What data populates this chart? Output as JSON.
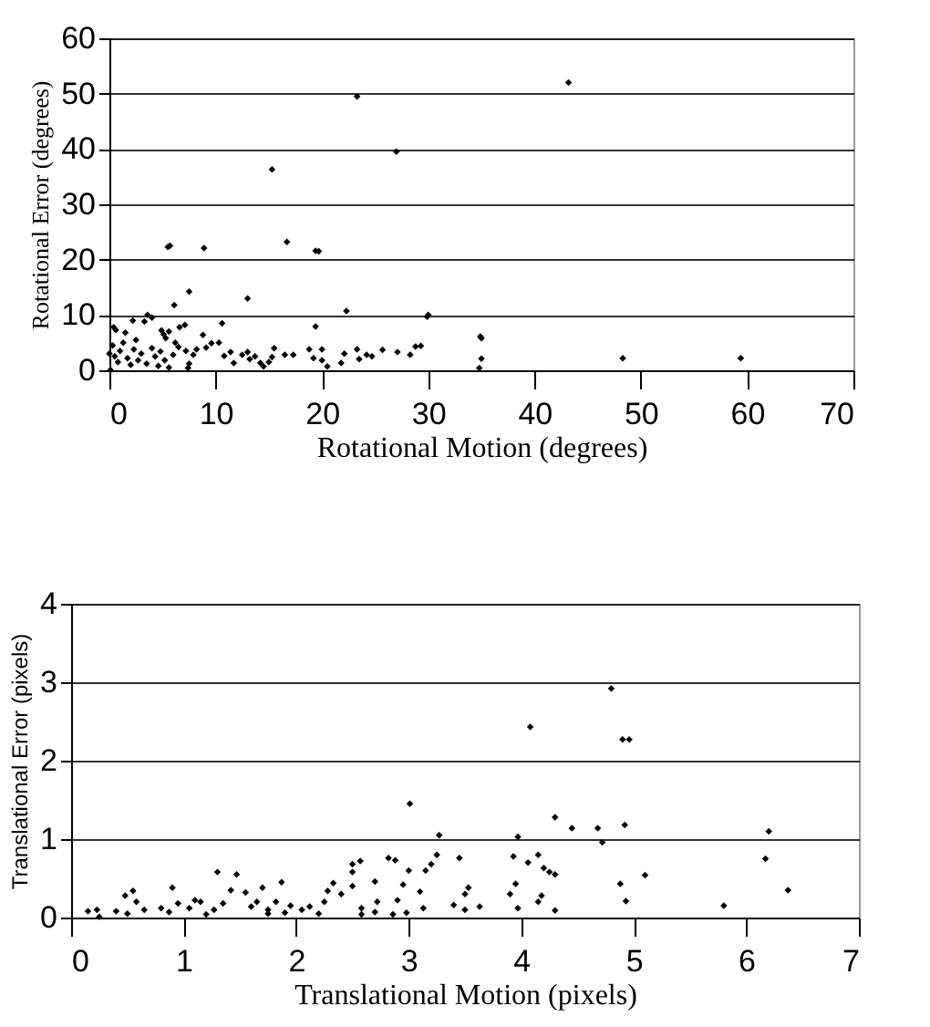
{
  "chart_data": [
    {
      "type": "scatter",
      "xlabel": "Rotational Motion (degrees)",
      "ylabel": "Rotational Error (degrees)",
      "color": "#000000",
      "marker": "diamond",
      "grid": "y",
      "xlim": [
        0,
        70
      ],
      "xticks": [
        0,
        10,
        20,
        30,
        40,
        50,
        60,
        70
      ],
      "ylim": [
        0,
        60
      ],
      "yticks": [
        0,
        10,
        20,
        30,
        40,
        50,
        60
      ],
      "x": [
        43.2,
        23.3,
        27,
        15.3,
        16.7,
        5.7,
        5.5,
        8.9,
        19.4,
        19.7,
        7.5,
        13,
        6.1,
        22.3,
        30,
        29.9,
        19.4,
        34.9,
        35,
        35,
        34.8,
        48.3,
        59.4,
        10.6,
        8.8,
        3.6,
        4,
        3.3,
        2.2,
        0.4,
        0.6,
        1.5,
        2.5,
        4.9,
        5.1,
        5.3,
        5.6,
        6.6,
        7.1,
        6.2,
        6.5,
        7.2,
        7.9,
        7.5,
        7.4,
        8.2,
        9.1,
        9.6,
        10.3,
        10.8,
        11.4,
        11.7,
        12.5,
        13,
        13.2,
        13.7,
        14.2,
        14.5,
        15,
        15.5,
        15.3,
        16.5,
        17.3,
        18.8,
        19.2,
        20,
        20,
        20.5,
        21.8,
        22.1,
        23.3,
        23.5,
        24.2,
        24.7,
        25.7,
        27.1,
        28.3,
        28.8,
        29.3,
        0,
        0.3,
        0.5,
        0.8,
        1,
        1.3,
        1.7,
        2,
        2.3,
        2.7,
        3,
        3.5,
        4,
        4.3,
        4.6,
        4.8,
        5.2,
        5.6,
        0.1,
        6
      ],
      "values": [
        52,
        49.5,
        39.5,
        36.3,
        23.2,
        22.5,
        22.3,
        22.1,
        21.6,
        21.5,
        14.2,
        13,
        11.8,
        10.7,
        10,
        9.7,
        7.9,
        6.1,
        5.8,
        2.1,
        0.4,
        2.2,
        2.2,
        8.5,
        6.4,
        10,
        9.5,
        8.8,
        9,
        7.8,
        7.3,
        6.8,
        5.5,
        7.2,
        6.5,
        5.8,
        7,
        7.8,
        8.2,
        5,
        4.2,
        3.5,
        2.8,
        1.2,
        0.4,
        3.8,
        4.1,
        4.9,
        5,
        2.6,
        3.3,
        1.3,
        2.8,
        3.3,
        2,
        2.5,
        1.3,
        0.7,
        1.5,
        4,
        2.4,
        2.8,
        2.8,
        3.8,
        2.2,
        3.8,
        1.8,
        0.7,
        1.3,
        3,
        3.8,
        2,
        2.8,
        2.5,
        3.7,
        3.3,
        2.8,
        4.3,
        4.4,
        3,
        4.5,
        2.5,
        1.5,
        3.5,
        5,
        2.2,
        1,
        3.8,
        1.8,
        3,
        1.2,
        4,
        2.5,
        0.8,
        3.4,
        1.8,
        0.5,
        0.1,
        2.8
      ]
    },
    {
      "type": "scatter",
      "xlabel": "Translational Motion (pixels)",
      "ylabel": "Translational Error (pixels)",
      "color": "#000000",
      "marker": "diamond",
      "grid": "y",
      "xlim": [
        0,
        7
      ],
      "xticks": [
        0,
        1,
        2,
        3,
        4,
        5,
        6,
        7
      ],
      "ylim": [
        0,
        4
      ],
      "yticks": [
        0,
        1,
        2,
        3,
        4
      ],
      "x": [
        4.8,
        4.08,
        4.9,
        4.96,
        3.01,
        4.3,
        4.45,
        4.68,
        4.92,
        6.2,
        3.97,
        3.27,
        4.72,
        6.17,
        5.1,
        6.37,
        4.88,
        4.93,
        5.8,
        4.3,
        4.15,
        4.18,
        3.97,
        3.9,
        3.95,
        3.93,
        4.06,
        4.15,
        4.2,
        4.25,
        4.3,
        3.45,
        3.53,
        3.5,
        3.4,
        3.5,
        3.63,
        3.25,
        3.2,
        3.15,
        3.1,
        3.13,
        2.98,
        3.0,
        2.88,
        2.82,
        2.95,
        2.9,
        2.86,
        2.7,
        2.72,
        2.7,
        2.58,
        2.58,
        2.57,
        2.5,
        2.5,
        2.5,
        2.4,
        2.33,
        2.28,
        2.2,
        2.12,
        2.05,
        1.95,
        1.9,
        1.87,
        1.82,
        1.75,
        1.7,
        1.65,
        1.6,
        1.55,
        1.47,
        1.42,
        1.3,
        1.35,
        1.27,
        1.2,
        1.15,
        1.1,
        1.05,
        0.95,
        0.9,
        0.87,
        0.8,
        0.65,
        0.58,
        0.55,
        0.48,
        0.5,
        0.4,
        0.25,
        0.23,
        0.15,
        1.75,
        2.25
      ],
      "values": [
        2.92,
        2.43,
        2.27,
        2.27,
        1.45,
        1.28,
        1.14,
        1.14,
        1.18,
        1.1,
        1.03,
        1.05,
        0.96,
        0.75,
        0.54,
        0.35,
        0.43,
        0.21,
        0.15,
        0.09,
        0.2,
        0.28,
        0.12,
        0.3,
        0.43,
        0.78,
        0.7,
        0.8,
        0.63,
        0.58,
        0.55,
        0.76,
        0.38,
        0.3,
        0.16,
        0.1,
        0.14,
        0.8,
        0.68,
        0.6,
        0.33,
        0.12,
        0.06,
        0.6,
        0.73,
        0.76,
        0.42,
        0.22,
        0.04,
        0.46,
        0.2,
        0.07,
        0.12,
        0.04,
        0.72,
        0.68,
        0.58,
        0.4,
        0.3,
        0.44,
        0.34,
        0.05,
        0.14,
        0.1,
        0.15,
        0.06,
        0.45,
        0.2,
        0.1,
        0.38,
        0.2,
        0.14,
        0.32,
        0.55,
        0.35,
        0.58,
        0.18,
        0.1,
        0.04,
        0.2,
        0.22,
        0.12,
        0.18,
        0.38,
        0.07,
        0.12,
        0.1,
        0.2,
        0.34,
        0.28,
        0.05,
        0.08,
        0.01,
        0.1,
        0.08,
        0.05,
        0.2
      ]
    }
  ]
}
